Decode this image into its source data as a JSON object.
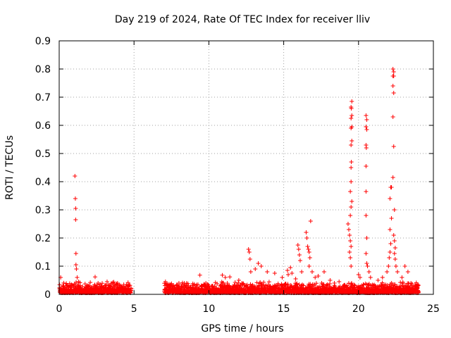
{
  "chart_data": {
    "type": "scatter",
    "title": "Day 219 of 2024, Rate Of TEC Index for receiver lliv",
    "xlabel": "GPS time / hours",
    "ylabel": "ROTI / TECUs",
    "xlim": [
      0,
      25
    ],
    "ylim": [
      0,
      0.9
    ],
    "x_ticks": [
      0,
      5,
      10,
      15,
      20,
      25
    ],
    "x_tick_labels": [
      "0",
      "5",
      "10",
      "15",
      "20",
      "25"
    ],
    "y_ticks": [
      0,
      0.1,
      0.2,
      0.3,
      0.4,
      0.5,
      0.6,
      0.7,
      0.8,
      0.9
    ],
    "y_tick_labels": [
      "0",
      "0.1",
      "0.2",
      "0.3",
      "0.4",
      "0.5",
      "0.6",
      "0.7",
      "0.8",
      "0.9"
    ],
    "grid": true,
    "legend": "none",
    "marker": "+",
    "color": "#ff0000",
    "data_gap_hours": [
      4.8,
      7.0
    ],
    "series": [
      {
        "marker": "+",
        "points": [
          [
            0.1,
            0.06
          ],
          [
            0.3,
            0.02
          ],
          [
            0.5,
            0.03
          ],
          [
            1.05,
            0.42
          ],
          [
            1.08,
            0.34
          ],
          [
            1.1,
            0.305
          ],
          [
            1.1,
            0.265
          ],
          [
            1.12,
            0.145
          ],
          [
            1.12,
            0.105
          ],
          [
            1.15,
            0.09
          ],
          [
            1.2,
            0.06
          ],
          [
            1.3,
            0.045
          ],
          [
            2.4,
            0.062
          ],
          [
            3.2,
            0.045
          ],
          [
            3.9,
            0.04
          ],
          [
            4.5,
            0.035
          ],
          [
            7.1,
            0.045
          ],
          [
            8.0,
            0.04
          ],
          [
            9.4,
            0.068
          ],
          [
            9.8,
            0.04
          ],
          [
            10.0,
            0.03
          ],
          [
            10.9,
            0.068
          ],
          [
            11.1,
            0.06
          ],
          [
            11.4,
            0.062
          ],
          [
            12.0,
            0.05
          ],
          [
            12.65,
            0.16
          ],
          [
            12.7,
            0.15
          ],
          [
            12.75,
            0.125
          ],
          [
            12.8,
            0.08
          ],
          [
            13.1,
            0.09
          ],
          [
            13.3,
            0.11
          ],
          [
            13.5,
            0.1
          ],
          [
            13.9,
            0.08
          ],
          [
            14.4,
            0.075
          ],
          [
            14.9,
            0.06
          ],
          [
            15.25,
            0.085
          ],
          [
            15.3,
            0.07
          ],
          [
            15.45,
            0.095
          ],
          [
            15.55,
            0.075
          ],
          [
            15.8,
            0.055
          ],
          [
            15.95,
            0.175
          ],
          [
            16.0,
            0.16
          ],
          [
            16.05,
            0.14
          ],
          [
            16.1,
            0.12
          ],
          [
            16.2,
            0.08
          ],
          [
            16.5,
            0.22
          ],
          [
            16.55,
            0.2
          ],
          [
            16.6,
            0.17
          ],
          [
            16.65,
            0.16
          ],
          [
            16.7,
            0.15
          ],
          [
            16.75,
            0.13
          ],
          [
            16.8,
            0.26
          ],
          [
            16.7,
            0.1
          ],
          [
            16.9,
            0.08
          ],
          [
            17.1,
            0.06
          ],
          [
            17.3,
            0.065
          ],
          [
            17.7,
            0.08
          ],
          [
            18.1,
            0.05
          ],
          [
            18.7,
            0.045
          ],
          [
            19.3,
            0.25
          ],
          [
            19.35,
            0.23
          ],
          [
            19.4,
            0.21
          ],
          [
            19.45,
            0.19
          ],
          [
            19.5,
            0.17
          ],
          [
            19.4,
            0.15
          ],
          [
            19.45,
            0.13
          ],
          [
            19.5,
            0.1
          ],
          [
            19.45,
            0.28
          ],
          [
            19.5,
            0.31
          ],
          [
            19.45,
            0.365
          ],
          [
            19.5,
            0.4
          ],
          [
            19.55,
            0.33
          ],
          [
            19.5,
            0.45
          ],
          [
            19.52,
            0.47
          ],
          [
            19.5,
            0.53
          ],
          [
            19.55,
            0.545
          ],
          [
            19.5,
            0.59
          ],
          [
            19.55,
            0.595
          ],
          [
            19.5,
            0.625
          ],
          [
            19.55,
            0.635
          ],
          [
            19.52,
            0.66
          ],
          [
            19.5,
            0.665
          ],
          [
            19.55,
            0.685
          ],
          [
            20.0,
            0.07
          ],
          [
            20.1,
            0.06
          ],
          [
            20.5,
            0.635
          ],
          [
            20.55,
            0.62
          ],
          [
            20.5,
            0.595
          ],
          [
            20.55,
            0.585
          ],
          [
            20.5,
            0.53
          ],
          [
            20.52,
            0.52
          ],
          [
            20.5,
            0.455
          ],
          [
            20.5,
            0.365
          ],
          [
            20.5,
            0.28
          ],
          [
            20.55,
            0.2
          ],
          [
            20.5,
            0.145
          ],
          [
            20.55,
            0.11
          ],
          [
            20.6,
            0.1
          ],
          [
            20.7,
            0.08
          ],
          [
            20.8,
            0.06
          ],
          [
            21.3,
            0.05
          ],
          [
            21.6,
            0.06
          ],
          [
            21.9,
            0.08
          ],
          [
            22.0,
            0.1
          ],
          [
            22.05,
            0.13
          ],
          [
            22.1,
            0.15
          ],
          [
            22.15,
            0.18
          ],
          [
            22.1,
            0.23
          ],
          [
            22.2,
            0.27
          ],
          [
            22.1,
            0.34
          ],
          [
            22.15,
            0.38
          ],
          [
            22.2,
            0.38
          ],
          [
            22.3,
            0.8
          ],
          [
            22.35,
            0.79
          ],
          [
            22.3,
            0.775
          ],
          [
            22.35,
            0.775
          ],
          [
            22.3,
            0.74
          ],
          [
            22.35,
            0.715
          ],
          [
            22.3,
            0.63
          ],
          [
            22.35,
            0.525
          ],
          [
            22.3,
            0.415
          ],
          [
            22.4,
            0.3
          ],
          [
            22.35,
            0.21
          ],
          [
            22.4,
            0.19
          ],
          [
            22.45,
            0.165
          ],
          [
            22.4,
            0.145
          ],
          [
            22.45,
            0.125
          ],
          [
            22.5,
            0.1
          ],
          [
            22.6,
            0.08
          ],
          [
            22.9,
            0.06
          ],
          [
            23.1,
            0.1
          ],
          [
            23.3,
            0.08
          ],
          [
            23.5,
            0.04
          ],
          [
            23.9,
            0.03
          ]
        ]
      }
    ]
  }
}
